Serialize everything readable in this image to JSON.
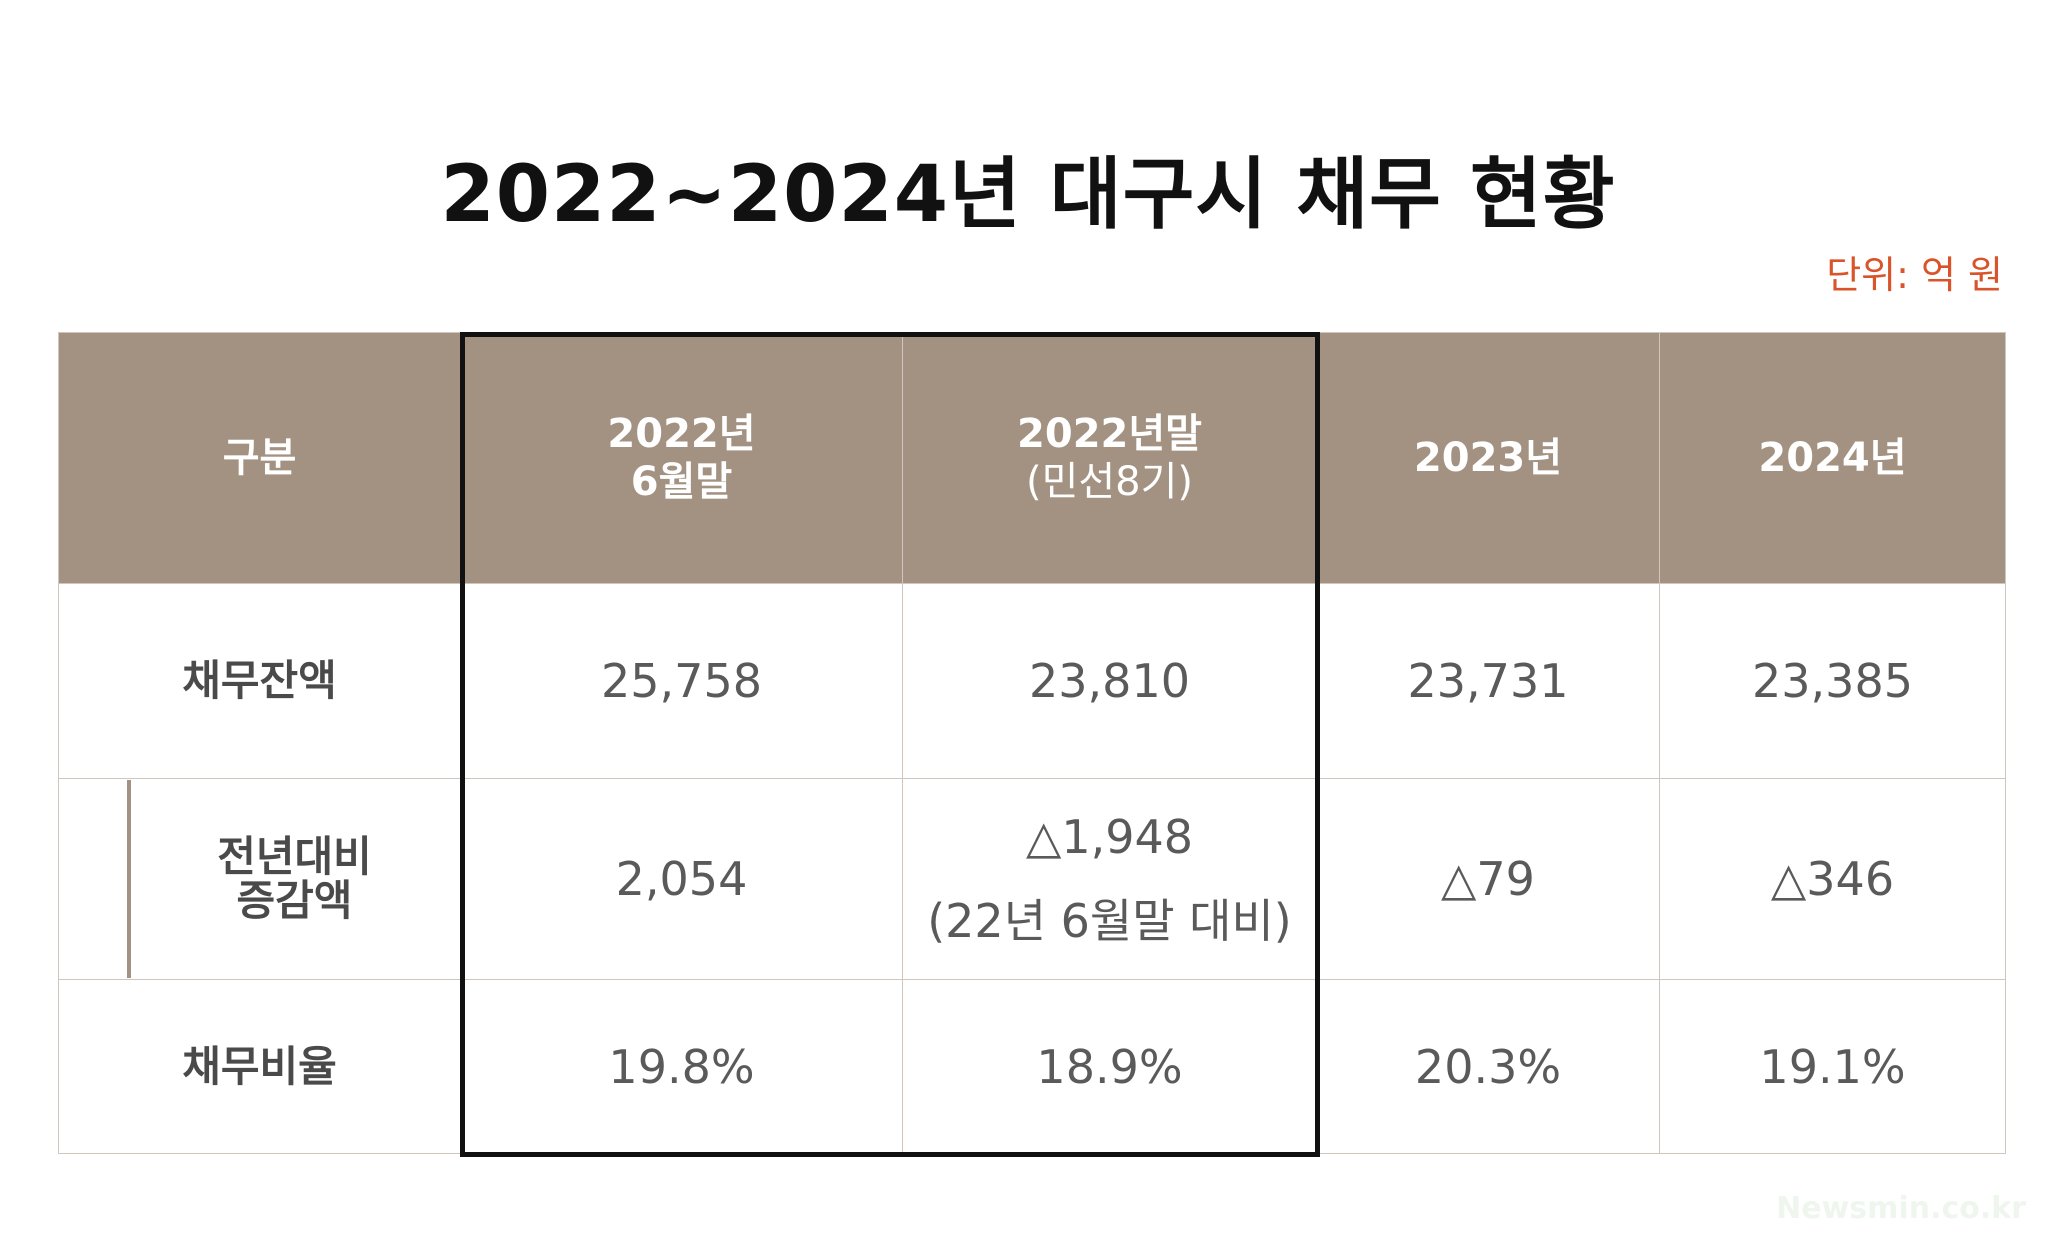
{
  "title": "2022~2024년 대구시 채무 현황",
  "unit": "단위: 억 원",
  "watermark": "Newsmin.co.kr",
  "colors": {
    "header_bg": "#a39282",
    "header_text": "#ffffff",
    "unit_text": "#d9542a",
    "highlight_border": "#111111"
  },
  "chart_data": {
    "type": "table",
    "title": "2022~2024년 대구시 채무 현황",
    "unit": "단위: 억 원",
    "columns": [
      {
        "lines": [
          "구분"
        ]
      },
      {
        "lines": [
          "2022년",
          "6월말"
        ]
      },
      {
        "lines": [
          "2022년말",
          "(민선8기)"
        ]
      },
      {
        "lines": [
          "2023년"
        ]
      },
      {
        "lines": [
          "2024년"
        ]
      }
    ],
    "rows": [
      {
        "label": [
          "채무잔액"
        ],
        "cells": [
          [
            "25,758"
          ],
          [
            "23,810"
          ],
          [
            "23,731"
          ],
          [
            "23,385"
          ]
        ]
      },
      {
        "label": [
          "전년대비",
          "증감액"
        ],
        "cells": [
          [
            "2,054"
          ],
          [
            "△1,948",
            "(22년 6월말 대비)"
          ],
          [
            "△79"
          ],
          [
            "△346"
          ]
        ]
      },
      {
        "label": [
          "채무비율"
        ],
        "cells": [
          [
            "19.8%"
          ],
          [
            "18.9%"
          ],
          [
            "20.3%"
          ],
          [
            "19.1%"
          ]
        ]
      }
    ],
    "highlighted_columns": [
      "2022년 6월말",
      "2022년말 (민선8기)"
    ]
  }
}
